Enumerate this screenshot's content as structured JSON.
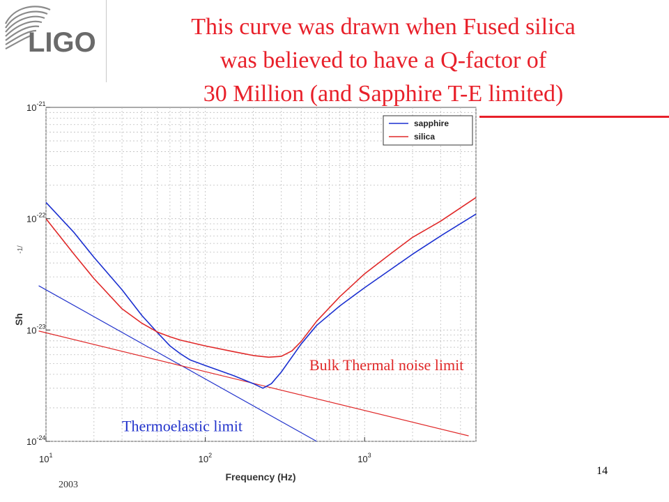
{
  "slide": {
    "title_lines": [
      "This curve was drawn when Fused silica",
      "was believed to have a Q-factor  of",
      "30 Million (and Sapphire T-E limited)"
    ],
    "slide_number": "14",
    "footer_year": "2003",
    "logo_text": "LIGO",
    "colors": {
      "title": "#e8202a",
      "sapphire": "#1a2fd0",
      "silica": "#e02828"
    }
  },
  "chart_data": {
    "type": "line",
    "x_scale": "log",
    "y_scale": "log",
    "xlim": [
      10,
      5000
    ],
    "ylim": [
      1e-24,
      1e-21
    ],
    "grid": true,
    "xlabel": "Frequency (Hz)",
    "ylabel": "Sh",
    "ylabel_extra": "-1/",
    "x_ticks": [
      {
        "value": 10,
        "base": "10",
        "exp": "1"
      },
      {
        "value": 100,
        "base": "10",
        "exp": "2"
      },
      {
        "value": 1000,
        "base": "10",
        "exp": "3"
      }
    ],
    "y_ticks": [
      {
        "value": 1e-21,
        "base": "10",
        "exp": "-21"
      },
      {
        "value": 1e-22,
        "base": "10",
        "exp": "-22"
      },
      {
        "value": 1e-23,
        "base": "10",
        "exp": "-23"
      },
      {
        "value": 1e-24,
        "base": "10",
        "exp": "-24"
      }
    ],
    "legend": {
      "placement": "top-right",
      "entries": [
        {
          "name": "sapphire",
          "color": "#1a2fd0"
        },
        {
          "name": "silica",
          "color": "#e02828"
        }
      ]
    },
    "series": [
      {
        "name": "sapphire",
        "color": "#1a2fd0",
        "x": [
          10,
          15,
          20,
          30,
          40,
          50,
          60,
          70,
          80,
          100,
          150,
          200,
          230,
          260,
          300,
          400,
          500,
          700,
          1000,
          1500,
          2000,
          3000,
          5000
        ],
        "y": [
          1.4e-22,
          7.5e-23,
          4.5e-23,
          2.3e-23,
          1.35e-23,
          9.5e-24,
          7.2e-24,
          6.1e-24,
          5.4e-24,
          4.8e-24,
          3.9e-24,
          3.3e-24,
          3e-24,
          3.3e-24,
          4.2e-24,
          7.5e-24,
          1.1e-23,
          1.65e-23,
          2.4e-23,
          3.6e-23,
          4.8e-23,
          7e-23,
          1.1e-22
        ]
      },
      {
        "name": "silica",
        "color": "#e02828",
        "x": [
          10,
          15,
          20,
          30,
          40,
          50,
          60,
          70,
          100,
          150,
          200,
          250,
          300,
          350,
          400,
          500,
          700,
          1000,
          1500,
          2000,
          3000,
          5000
        ],
        "y": [
          1e-22,
          4.8e-23,
          2.9e-23,
          1.55e-23,
          1.15e-23,
          9.6e-24,
          8.7e-24,
          8.1e-24,
          7.2e-24,
          6.4e-24,
          5.9e-24,
          5.7e-24,
          5.8e-24,
          6.5e-24,
          7.9e-24,
          1.2e-23,
          2e-23,
          3.2e-23,
          5e-23,
          6.8e-23,
          9.5e-23,
          1.55e-22
        ]
      }
    ],
    "reference_lines": [
      {
        "name": "Thermoelastic limit",
        "color": "#2233cc",
        "x": [
          9,
          500
        ],
        "y": [
          2.5e-23,
          1e-24
        ],
        "label_x": 30,
        "label_y": 1.23e-24,
        "label_color": "#2233cc"
      },
      {
        "name": "Bulk Thermal noise limit",
        "color": "#e02828",
        "x": [
          9,
          4500
        ],
        "y": [
          9.8e-24,
          1.12e-24
        ],
        "label_x": 450,
        "label_y": 4.35e-24,
        "label_color": "#e02828"
      }
    ]
  }
}
